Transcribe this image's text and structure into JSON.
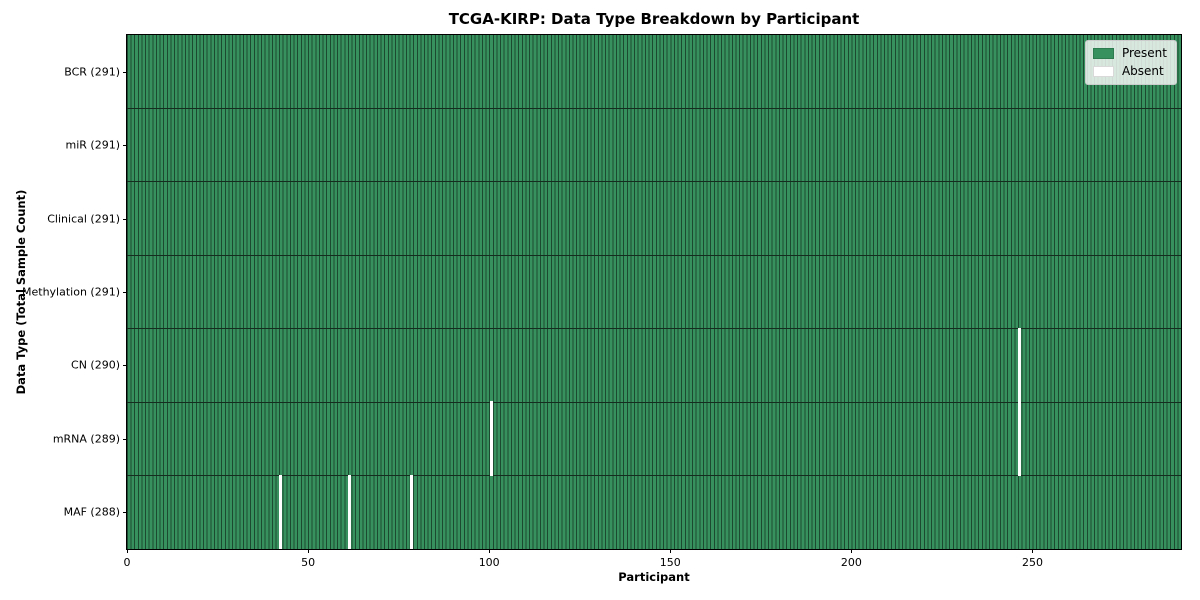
{
  "chart": {
    "title": "TCGA-KIRP: Data Type Breakdown by Participant",
    "xlabel": "Participant",
    "ylabel": "Data Type (Total Sample Count)"
  },
  "legend": {
    "position": "upper right",
    "items": [
      {
        "label": "Present",
        "color": "#37915f"
      },
      {
        "label": "Absent",
        "color": "#ffffff"
      }
    ]
  },
  "chart_data": {
    "type": "heatmap",
    "title": "TCGA-KIRP: Data Type Breakdown by Participant",
    "xlabel": "Participant",
    "ylabel": "Data Type (Total Sample Count)",
    "x_axis": {
      "label": "Participant",
      "range": [
        0,
        291
      ],
      "ticks": [
        0,
        50,
        100,
        150,
        200,
        250
      ]
    },
    "n_participants": 291,
    "rows": [
      {
        "label": "BCR (291)",
        "data_type": "BCR",
        "present_count": 291,
        "absent_participants": []
      },
      {
        "label": "miR (291)",
        "data_type": "miR",
        "present_count": 291,
        "absent_participants": []
      },
      {
        "label": "Clinical (291)",
        "data_type": "Clinical",
        "present_count": 291,
        "absent_participants": []
      },
      {
        "label": "Methylation (291)",
        "data_type": "Methylation",
        "present_count": 291,
        "absent_participants": []
      },
      {
        "label": "CN (290)",
        "data_type": "CN",
        "present_count": 290,
        "absent_participants": [
          246
        ]
      },
      {
        "label": "mRNA (289)",
        "data_type": "mRNA",
        "present_count": 289,
        "absent_participants": [
          100,
          246
        ]
      },
      {
        "label": "MAF (288)",
        "data_type": "MAF",
        "present_count": 288,
        "absent_participants": [
          42,
          61,
          78
        ]
      }
    ],
    "colors": {
      "present": "#37915f",
      "absent": "#ffffff",
      "cell_edge": "#1c4a31",
      "row_divider": "#142d1e",
      "spine": "#000000"
    },
    "legend_entries": [
      "Present",
      "Absent"
    ],
    "grid": false
  }
}
